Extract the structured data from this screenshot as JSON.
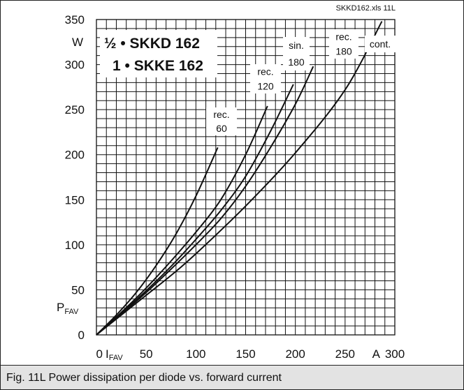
{
  "file_ref": "SKKD162.xls 11L",
  "title_lines": [
    "½ • SKKD 162",
    "1 • SKKE 162"
  ],
  "y_unit": "W",
  "y_symbol": "P",
  "y_symbol_sub": "FAV",
  "x_symbol": "I",
  "x_symbol_sub": "FAV",
  "x_unit": "A",
  "caption": "Fig. 11L Power dissipation per diode vs. forward current",
  "chart_data": {
    "type": "line",
    "title": "",
    "xlabel": "IFAV (A)",
    "ylabel": "PFAV (W)",
    "xlim": [
      0,
      300
    ],
    "ylim": [
      0,
      350
    ],
    "x_ticks": [
      0,
      50,
      100,
      150,
      200,
      250,
      300
    ],
    "y_ticks": [
      0,
      50,
      100,
      150,
      200,
      250,
      300,
      350
    ],
    "grid": true,
    "series": [
      {
        "name": "rec. 60",
        "label_lines": [
          "rec.",
          "60"
        ],
        "x": [
          0,
          20,
          40,
          60,
          80,
          100,
          122
        ],
        "y": [
          0,
          22,
          47,
          77,
          112,
          154,
          208
        ]
      },
      {
        "name": "rec. 120",
        "label_lines": [
          "rec.",
          "120"
        ],
        "x": [
          0,
          25,
          50,
          75,
          100,
          125,
          150,
          172
        ],
        "y": [
          0,
          25,
          52,
          82,
          114,
          150,
          200,
          254
        ]
      },
      {
        "name": "sin. 180",
        "label_lines": [
          "sin.",
          "180"
        ],
        "x": [
          0,
          25,
          50,
          75,
          100,
          125,
          150,
          175,
          198
        ],
        "y": [
          0,
          24,
          49,
          76,
          106,
          138,
          176,
          226,
          278
        ]
      },
      {
        "name": "rec. 180",
        "label_lines": [
          "rec.",
          "180"
        ],
        "x": [
          0,
          25,
          50,
          75,
          100,
          125,
          150,
          175,
          200,
          218
        ],
        "y": [
          0,
          23,
          47,
          73,
          100,
          129,
          165,
          208,
          256,
          298
        ]
      },
      {
        "name": "cont.",
        "label_lines": [
          "cont."
        ],
        "x": [
          0,
          25,
          50,
          75,
          100,
          150,
          200,
          250,
          287
        ],
        "y": [
          0,
          22,
          44,
          66,
          90,
          143,
          202,
          272,
          348
        ]
      }
    ]
  }
}
